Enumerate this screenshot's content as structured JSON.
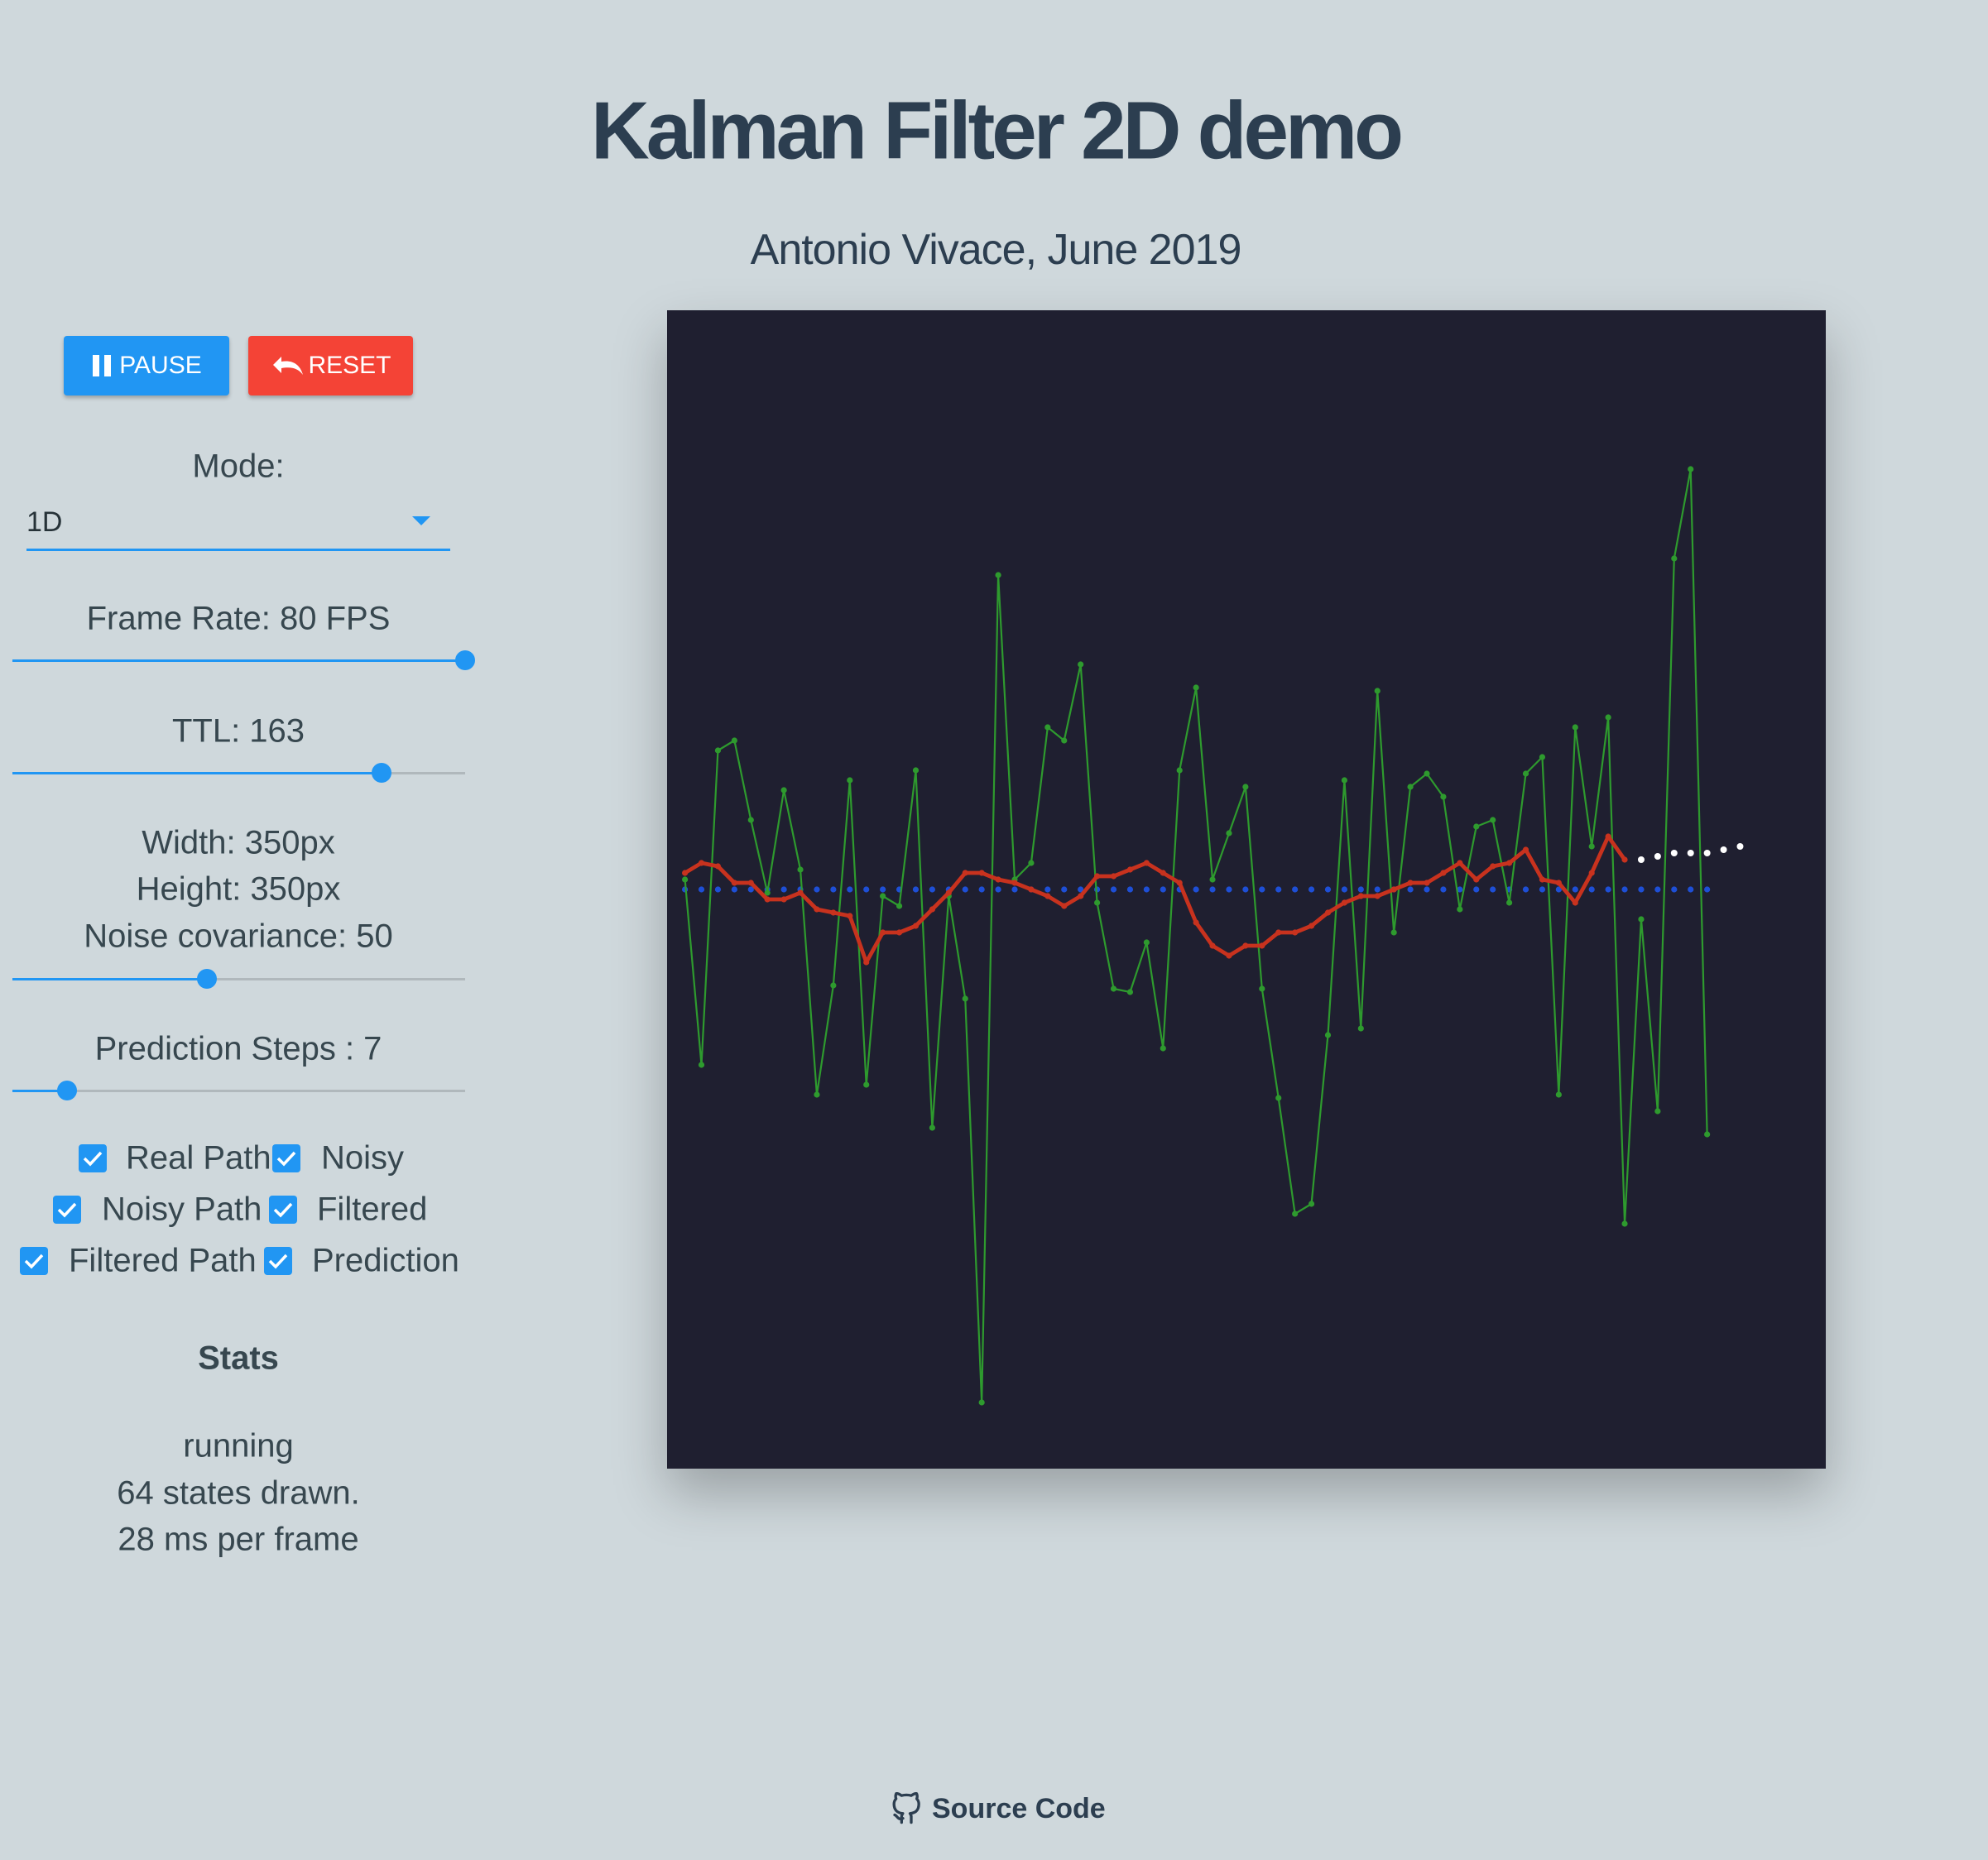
{
  "header": {
    "title": "Kalman Filter 2D demo",
    "subtitle": "Antonio Vivace, June 2019"
  },
  "controls": {
    "buttons": [
      "PAUSE",
      "RESET"
    ],
    "mode": {
      "label": "Mode:",
      "value": "1D"
    },
    "frame_rate": "Frame Rate: 80 FPS",
    "ttl": "TTL: 163",
    "width": "Width: 350px",
    "height": "Height: 350px",
    "noise_covariance": "Noise covariance: 50",
    "prediction_steps": "Prediction Steps : 7",
    "checkboxes": [
      {
        "label": "Real Path",
        "checked": true
      },
      {
        "label": "Noisy",
        "checked": true
      },
      {
        "label": "Noisy Path",
        "checked": true
      },
      {
        "label": "Filtered",
        "checked": true
      },
      {
        "label": "Filtered Path",
        "checked": true
      },
      {
        "label": "Prediction",
        "checked": true
      }
    ]
  },
  "stats": {
    "title": "Stats",
    "lines": [
      "running",
      "64 states drawn.",
      "28 ms per frame"
    ]
  },
  "footer": {
    "link": "Source Code"
  },
  "plot": {
    "background": "#1f1f30",
    "real": {
      "color": "#1e4fd6",
      "y": [
        175,
        175,
        175,
        175,
        175,
        175,
        175,
        175,
        175,
        175,
        175,
        175,
        175,
        175,
        175,
        175,
        175,
        175,
        175,
        175,
        175,
        175,
        175,
        175,
        175,
        175,
        175,
        175,
        175,
        175,
        175,
        175,
        175,
        175,
        175,
        175,
        175,
        175,
        175,
        175,
        175,
        175,
        175,
        175,
        175,
        175,
        175,
        175,
        175,
        175,
        175,
        175,
        175,
        175,
        175,
        175,
        175,
        175,
        175,
        175,
        175,
        175,
        175
      ]
    },
    "noisy": {
      "color": "#2e9a2e",
      "y": [
        172,
        228,
        133,
        130,
        154,
        176,
        145,
        169,
        237,
        204,
        142,
        234,
        177,
        180,
        139,
        247,
        177,
        208,
        330,
        80,
        172,
        167,
        126,
        130,
        107,
        179,
        205,
        206,
        191,
        223,
        139,
        114,
        172,
        158,
        144,
        205,
        238,
        273,
        270,
        219,
        142,
        217,
        115,
        188,
        144,
        140,
        147,
        181,
        156,
        154,
        179,
        140,
        135,
        237,
        126,
        162,
        123,
        276,
        184,
        242,
        75,
        48,
        249
      ]
    },
    "filtered": {
      "color": "#c8321e",
      "y": [
        170,
        167,
        168,
        173,
        173,
        178,
        178,
        176,
        181,
        182,
        183,
        197,
        188,
        188,
        186,
        181,
        176,
        170,
        170,
        172,
        173,
        175,
        177,
        180,
        177,
        171,
        171,
        169,
        167,
        170,
        173,
        185,
        192,
        195,
        192,
        192,
        188,
        188,
        186,
        182,
        179,
        177,
        177,
        175,
        173,
        173,
        170,
        167,
        172,
        168,
        167,
        163,
        172,
        173,
        179,
        170,
        159,
        166
      ]
    },
    "prediction": {
      "color": "#ffffff",
      "y": [
        166,
        165,
        164,
        164,
        164,
        163,
        162
      ]
    }
  }
}
